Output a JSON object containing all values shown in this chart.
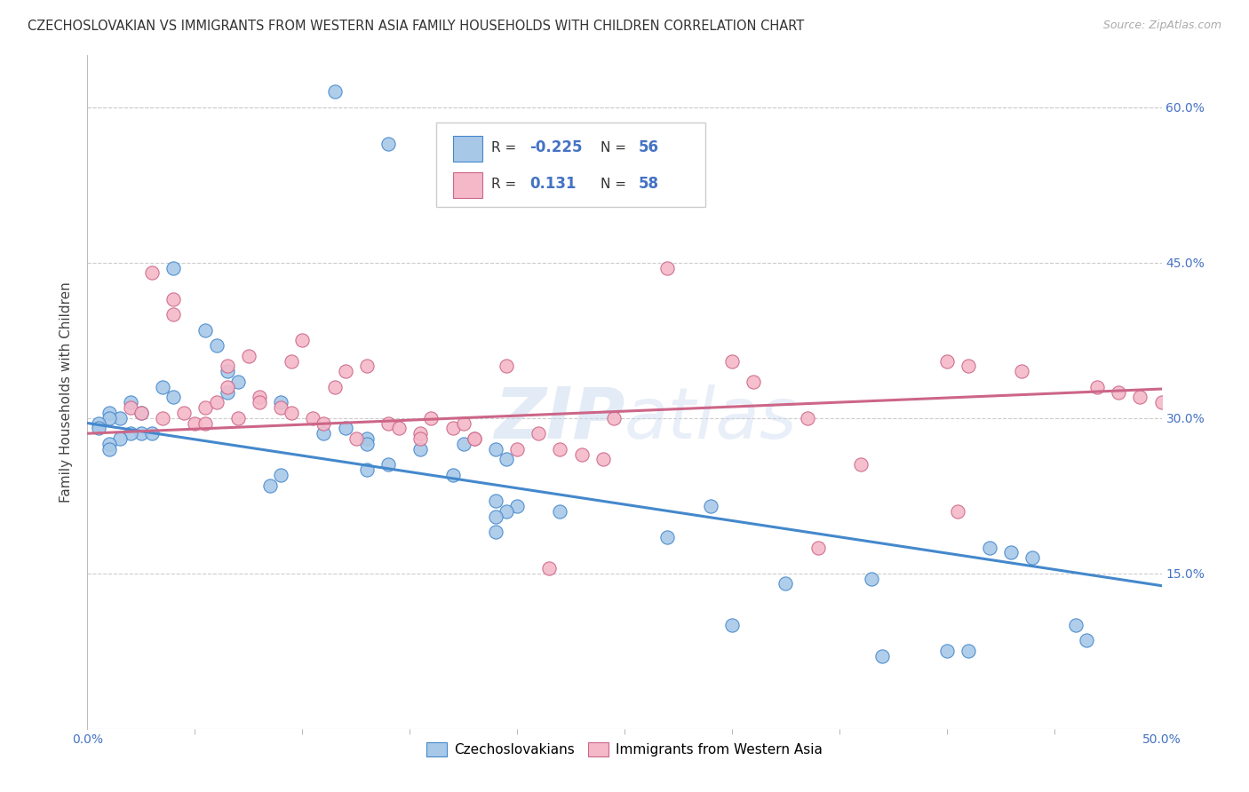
{
  "title": "CZECHOSLOVAKIAN VS IMMIGRANTS FROM WESTERN ASIA FAMILY HOUSEHOLDS WITH CHILDREN CORRELATION CHART",
  "source": "Source: ZipAtlas.com",
  "ylabel": "Family Households with Children",
  "xlim": [
    0.0,
    0.5
  ],
  "ylim": [
    0.0,
    0.65
  ],
  "xticks_major": [
    0.0,
    0.5
  ],
  "xticks_minor": [
    0.05,
    0.1,
    0.15,
    0.2,
    0.25,
    0.3,
    0.35,
    0.4,
    0.45
  ],
  "yticks": [
    0.15,
    0.3,
    0.45,
    0.6
  ],
  "ytick_labels": [
    "15.0%",
    "30.0%",
    "45.0%",
    "60.0%"
  ],
  "xtick_labels_major": [
    "0.0%",
    "50.0%"
  ],
  "color_blue": "#a8c8e8",
  "color_pink": "#f4b8c8",
  "line_color_blue": "#4488cc",
  "line_color_pink": "#cc6688",
  "tick_color": "#4472c4",
  "watermark": "ZIPatlas",
  "blue_scatter_x": [
    0.115,
    0.14,
    0.04,
    0.055,
    0.06,
    0.035,
    0.04,
    0.02,
    0.025,
    0.01,
    0.015,
    0.01,
    0.005,
    0.005,
    0.025,
    0.03,
    0.02,
    0.015,
    0.01,
    0.01,
    0.065,
    0.07,
    0.065,
    0.09,
    0.12,
    0.11,
    0.13,
    0.13,
    0.155,
    0.175,
    0.19,
    0.195,
    0.14,
    0.13,
    0.17,
    0.09,
    0.085,
    0.19,
    0.2,
    0.29,
    0.22,
    0.195,
    0.19,
    0.19,
    0.27,
    0.42,
    0.43,
    0.44,
    0.365,
    0.325,
    0.3,
    0.46,
    0.465,
    0.4,
    0.41,
    0.37
  ],
  "blue_scatter_y": [
    0.615,
    0.565,
    0.445,
    0.385,
    0.37,
    0.33,
    0.32,
    0.315,
    0.305,
    0.305,
    0.3,
    0.3,
    0.295,
    0.29,
    0.285,
    0.285,
    0.285,
    0.28,
    0.275,
    0.27,
    0.345,
    0.335,
    0.325,
    0.315,
    0.29,
    0.285,
    0.28,
    0.275,
    0.27,
    0.275,
    0.27,
    0.26,
    0.255,
    0.25,
    0.245,
    0.245,
    0.235,
    0.22,
    0.215,
    0.215,
    0.21,
    0.21,
    0.205,
    0.19,
    0.185,
    0.175,
    0.17,
    0.165,
    0.145,
    0.14,
    0.1,
    0.1,
    0.085,
    0.075,
    0.075,
    0.07
  ],
  "pink_scatter_x": [
    0.02,
    0.025,
    0.03,
    0.04,
    0.04,
    0.035,
    0.045,
    0.05,
    0.055,
    0.06,
    0.055,
    0.07,
    0.065,
    0.065,
    0.075,
    0.08,
    0.08,
    0.09,
    0.095,
    0.1,
    0.095,
    0.105,
    0.11,
    0.115,
    0.12,
    0.125,
    0.13,
    0.14,
    0.145,
    0.155,
    0.155,
    0.16,
    0.17,
    0.175,
    0.18,
    0.18,
    0.195,
    0.2,
    0.21,
    0.215,
    0.22,
    0.23,
    0.24,
    0.245,
    0.27,
    0.3,
    0.31,
    0.335,
    0.34,
    0.36,
    0.4,
    0.405,
    0.41,
    0.435,
    0.47,
    0.48,
    0.49,
    0.5
  ],
  "pink_scatter_y": [
    0.31,
    0.305,
    0.44,
    0.415,
    0.4,
    0.3,
    0.305,
    0.295,
    0.31,
    0.315,
    0.295,
    0.3,
    0.35,
    0.33,
    0.36,
    0.32,
    0.315,
    0.31,
    0.305,
    0.375,
    0.355,
    0.3,
    0.295,
    0.33,
    0.345,
    0.28,
    0.35,
    0.295,
    0.29,
    0.285,
    0.28,
    0.3,
    0.29,
    0.295,
    0.28,
    0.28,
    0.35,
    0.27,
    0.285,
    0.155,
    0.27,
    0.265,
    0.26,
    0.3,
    0.445,
    0.355,
    0.335,
    0.3,
    0.175,
    0.255,
    0.355,
    0.21,
    0.35,
    0.345,
    0.33,
    0.325,
    0.32,
    0.315
  ],
  "blue_trend_y_start": 0.295,
  "blue_trend_y_end": 0.138,
  "pink_trend_y_start": 0.285,
  "pink_trend_y_end": 0.328,
  "background_color": "#ffffff",
  "grid_color": "#cccccc",
  "title_fontsize": 10.5,
  "tick_fontsize": 10,
  "ylabel_fontsize": 11
}
